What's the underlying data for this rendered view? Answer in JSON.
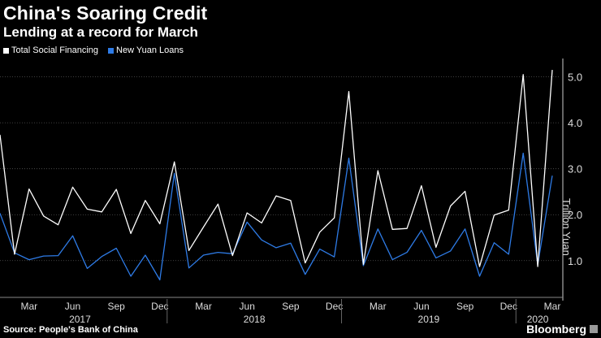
{
  "title": "China's Soaring Credit",
  "subtitle": "Lending at a record for March",
  "legend": [
    {
      "label": "Total Social Financing",
      "color": "#ffffff"
    },
    {
      "label": "New Yuan Loans",
      "color": "#2e7be6"
    }
  ],
  "source": "Source: People's Bank of China",
  "brand": "Bloomberg",
  "chart_data": {
    "type": "line",
    "title": "China's Soaring Credit",
    "ylabel": "Trillion Yuan",
    "ylim": [
      0.2,
      5.4
    ],
    "yticks": [
      1.0,
      2.0,
      3.0,
      4.0,
      5.0
    ],
    "ytick_labels": [
      "1.0",
      "2.0",
      "3.0",
      "4.0",
      "5.0"
    ],
    "x": [
      "2017-01",
      "2017-02",
      "2017-03",
      "2017-04",
      "2017-05",
      "2017-06",
      "2017-07",
      "2017-08",
      "2017-09",
      "2017-10",
      "2017-11",
      "2017-12",
      "2018-01",
      "2018-02",
      "2018-03",
      "2018-04",
      "2018-05",
      "2018-06",
      "2018-07",
      "2018-08",
      "2018-09",
      "2018-10",
      "2018-11",
      "2018-12",
      "2019-01",
      "2019-02",
      "2019-03",
      "2019-04",
      "2019-05",
      "2019-06",
      "2019-07",
      "2019-08",
      "2019-09",
      "2019-10",
      "2019-11",
      "2019-12",
      "2020-01",
      "2020-02",
      "2020-03"
    ],
    "xtick_labels": [
      {
        "index": 2,
        "label": "Mar"
      },
      {
        "index": 5,
        "label": "Jun"
      },
      {
        "index": 8,
        "label": "Sep"
      },
      {
        "index": 11,
        "label": "Dec"
      },
      {
        "index": 14,
        "label": "Mar"
      },
      {
        "index": 17,
        "label": "Jun"
      },
      {
        "index": 20,
        "label": "Sep"
      },
      {
        "index": 23,
        "label": "Dec"
      },
      {
        "index": 26,
        "label": "Mar"
      },
      {
        "index": 29,
        "label": "Jun"
      },
      {
        "index": 32,
        "label": "Sep"
      },
      {
        "index": 35,
        "label": "Dec"
      },
      {
        "index": 38,
        "label": "Mar"
      }
    ],
    "year_labels": [
      {
        "start": 0,
        "end": 11,
        "label": "2017"
      },
      {
        "start": 12,
        "end": 23,
        "label": "2018"
      },
      {
        "start": 24,
        "end": 35,
        "label": "2019"
      },
      {
        "start": 36,
        "end": 38,
        "label": "2020"
      }
    ],
    "series": [
      {
        "name": "Total Social Financing",
        "color": "#ffffff",
        "values": [
          3.74,
          1.14,
          2.56,
          1.97,
          1.78,
          2.6,
          2.12,
          2.06,
          2.55,
          1.59,
          2.31,
          1.8,
          3.15,
          1.22,
          1.73,
          2.23,
          1.11,
          2.04,
          1.82,
          2.41,
          2.31,
          0.95,
          1.62,
          1.93,
          4.68,
          0.92,
          2.96,
          1.68,
          1.7,
          2.63,
          1.29,
          2.19,
          2.51,
          0.87,
          1.99,
          2.1,
          5.05,
          0.87,
          5.15
        ]
      },
      {
        "name": "New Yuan Loans",
        "color": "#2e7be6",
        "values": [
          2.03,
          1.17,
          1.02,
          1.1,
          1.11,
          1.54,
          0.83,
          1.09,
          1.27,
          0.66,
          1.12,
          0.58,
          2.9,
          0.84,
          1.12,
          1.18,
          1.15,
          1.84,
          1.45,
          1.28,
          1.38,
          0.7,
          1.25,
          1.08,
          3.23,
          0.89,
          1.69,
          1.02,
          1.18,
          1.66,
          1.06,
          1.21,
          1.69,
          0.66,
          1.39,
          1.14,
          3.34,
          0.91,
          2.85
        ]
      }
    ]
  }
}
